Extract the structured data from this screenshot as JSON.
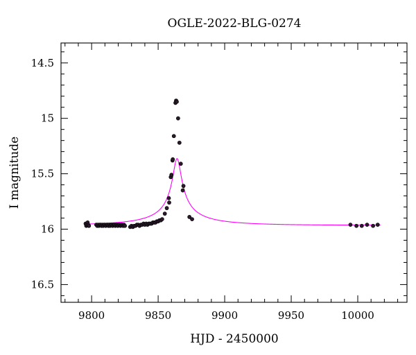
{
  "chart_data": {
    "type": "scatter",
    "title": "OGLE-2022-BLG-0274",
    "xlabel": "HJD - 2450000",
    "ylabel": "I magnitude",
    "xlim": [
      9777,
      10037
    ],
    "ylim": [
      14.32,
      16.66
    ],
    "y_inverted": true,
    "grid": false,
    "legend": "none",
    "x_ticks": [
      9800,
      9850,
      9900,
      9950,
      10000
    ],
    "x_tick_labels": [
      "9800",
      "9850",
      "9900",
      "9950",
      "10000"
    ],
    "y_ticks": [
      14.5,
      15,
      15.5,
      16,
      16.5
    ],
    "y_tick_labels": [
      "14.5",
      "15",
      "15.5",
      "16",
      "16.5"
    ],
    "colors": {
      "points": "#2a1a2a",
      "model": "#ff00ff",
      "axes": "#000000"
    },
    "model": {
      "type": "point-lens",
      "t0": 9864.2,
      "tE": 60,
      "u0": 0.05,
      "baseline_mag": 15.965,
      "peak_mag": 14.77,
      "fs": 0.039
    },
    "series": [
      {
        "points": [
          [
            9795.5,
            15.95
          ],
          [
            9796.0,
            15.97
          ],
          [
            9796.5,
            15.96
          ],
          [
            9797.0,
            15.94
          ],
          [
            9797.5,
            15.96
          ],
          [
            9798.0,
            15.97
          ],
          [
            9803.5,
            15.96
          ],
          [
            9804.2,
            15.97
          ],
          [
            9804.8,
            15.96
          ],
          [
            9805.5,
            15.97
          ],
          [
            9806.1,
            15.96
          ],
          [
            9806.8,
            15.96
          ],
          [
            9807.4,
            15.97
          ],
          [
            9808.0,
            15.96
          ],
          [
            9808.7,
            15.97
          ],
          [
            9809.3,
            15.96
          ],
          [
            9810.0,
            15.96
          ],
          [
            9810.6,
            15.97
          ],
          [
            9811.3,
            15.96
          ],
          [
            9812.0,
            15.96
          ],
          [
            9812.6,
            15.97
          ],
          [
            9813.2,
            15.96
          ],
          [
            9813.9,
            15.97
          ],
          [
            9814.5,
            15.96
          ],
          [
            9815.2,
            15.96
          ],
          [
            9815.8,
            15.97
          ],
          [
            9816.5,
            15.96
          ],
          [
            9817.1,
            15.96
          ],
          [
            9817.8,
            15.97
          ],
          [
            9818.4,
            15.96
          ],
          [
            9819.1,
            15.96
          ],
          [
            9819.7,
            15.97
          ],
          [
            9820.4,
            15.96
          ],
          [
            9821.0,
            15.96
          ],
          [
            9821.7,
            15.97
          ],
          [
            9822.3,
            15.96
          ],
          [
            9823.0,
            15.96
          ],
          [
            9823.6,
            15.97
          ],
          [
            9824.3,
            15.96
          ],
          [
            9825.0,
            15.97
          ],
          [
            9829.0,
            15.98
          ],
          [
            9830.0,
            15.97
          ],
          [
            9831.0,
            15.98
          ],
          [
            9832.0,
            15.97
          ],
          [
            9833.0,
            15.97
          ],
          [
            9834.0,
            15.96
          ],
          [
            9835.0,
            15.96
          ],
          [
            9836.0,
            15.97
          ],
          [
            9837.0,
            15.96
          ],
          [
            9838.0,
            15.96
          ],
          [
            9839.0,
            15.95
          ],
          [
            9840.0,
            15.96
          ],
          [
            9841.0,
            15.95
          ],
          [
            9842.0,
            15.96
          ],
          [
            9843.0,
            15.95
          ],
          [
            9844.0,
            15.95
          ],
          [
            9845.0,
            15.95
          ],
          [
            9846.0,
            15.94
          ],
          [
            9847.0,
            15.94
          ],
          [
            9848.0,
            15.94
          ],
          [
            9849.0,
            15.93
          ],
          [
            9850.0,
            15.93
          ],
          [
            9851.0,
            15.92
          ],
          [
            9852.0,
            15.92
          ],
          [
            9853.0,
            15.91
          ],
          [
            9855.0,
            15.86
          ],
          [
            9856.5,
            15.81
          ],
          [
            9858.0,
            15.72
          ],
          [
            9858.3,
            15.76
          ],
          [
            9859.5,
            15.53
          ],
          [
            9860.0,
            15.51
          ],
          [
            9860.8,
            15.38
          ],
          [
            9861.0,
            15.37
          ],
          [
            9861.8,
            15.16
          ],
          [
            9863.0,
            14.86
          ],
          [
            9863.5,
            14.84
          ],
          [
            9864.0,
            14.85
          ],
          [
            9865.0,
            15.0
          ],
          [
            9866.0,
            15.22
          ],
          [
            9867.0,
            15.41
          ],
          [
            9868.5,
            15.65
          ],
          [
            9869.0,
            15.61
          ],
          [
            9873.5,
            15.89
          ],
          [
            9875.5,
            15.91
          ],
          [
            9994.5,
            15.96
          ],
          [
            9999.0,
            15.97
          ],
          [
            10003.0,
            15.97
          ],
          [
            10007.0,
            15.96
          ],
          [
            10011.5,
            15.97
          ],
          [
            10015.0,
            15.96
          ]
        ]
      }
    ]
  }
}
